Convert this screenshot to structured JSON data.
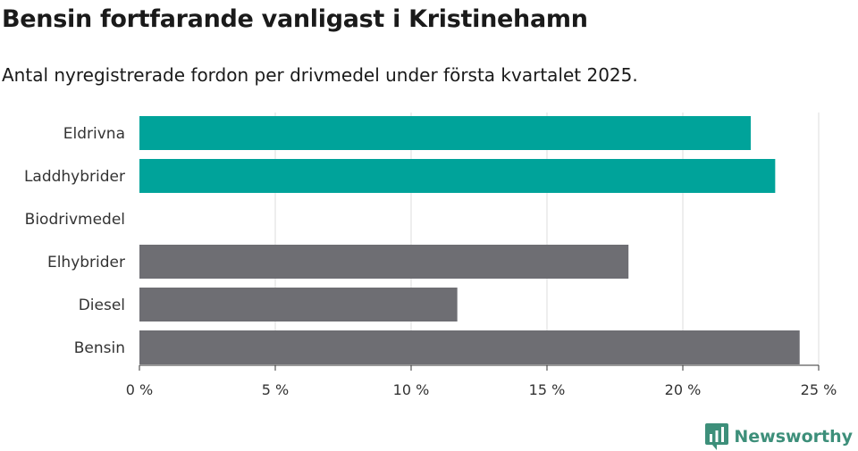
{
  "title": "Bensin fortfarande vanligast i Kristinehamn",
  "subtitle": "Antal nyregistrerade fordon per drivmedel under första kvartalet 2025.",
  "brand": {
    "name": "Newsworthy",
    "icon": "newsworthy-logo-icon",
    "color": "#3d8f7a"
  },
  "chart_data": {
    "type": "bar",
    "orientation": "horizontal",
    "categories": [
      "Eldrivna",
      "Laddhybrider",
      "Biodrivmedel",
      "Elhybrider",
      "Diesel",
      "Bensin"
    ],
    "values": [
      22.5,
      23.4,
      0,
      18.0,
      11.7,
      24.3
    ],
    "colors": [
      "#00a39a",
      "#00a39a",
      "#6e6e73",
      "#6e6e73",
      "#6e6e73",
      "#6e6e73"
    ],
    "xlim": [
      0,
      25
    ],
    "xticks": [
      0,
      5,
      10,
      15,
      20,
      25
    ],
    "xtick_labels": [
      "0 %",
      "5 %",
      "10 %",
      "15 %",
      "20 %",
      "25 %"
    ],
    "grid": true
  }
}
